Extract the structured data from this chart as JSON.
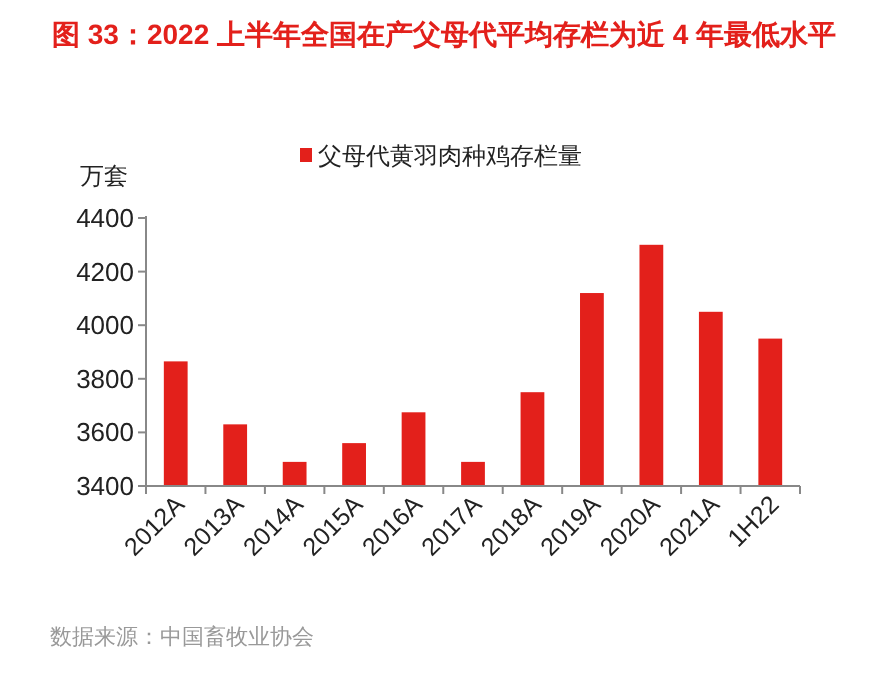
{
  "chart_data": {
    "type": "bar",
    "title": "图 33：2022 上半年全国在产父母代平均存栏为近 4 年最低水平",
    "ylabel": "万套",
    "categories": [
      "2012A",
      "2013A",
      "2014A",
      "2015A",
      "2016A",
      "2017A",
      "2018A",
      "2019A",
      "2020A",
      "2021A",
      "1H22"
    ],
    "series": [
      {
        "name": "父母代黄羽肉种鸡存栏量",
        "color": "#e3201b",
        "values": [
          3865,
          3630,
          3490,
          3560,
          3675,
          3490,
          3750,
          4120,
          4300,
          4050,
          3950
        ]
      }
    ],
    "ylim": [
      3400,
      4400
    ],
    "yticks": [
      3400,
      3600,
      3800,
      4000,
      4200,
      4400
    ],
    "legend": "top",
    "annotations": [
      "数据来源：中国畜牧业协会"
    ]
  }
}
